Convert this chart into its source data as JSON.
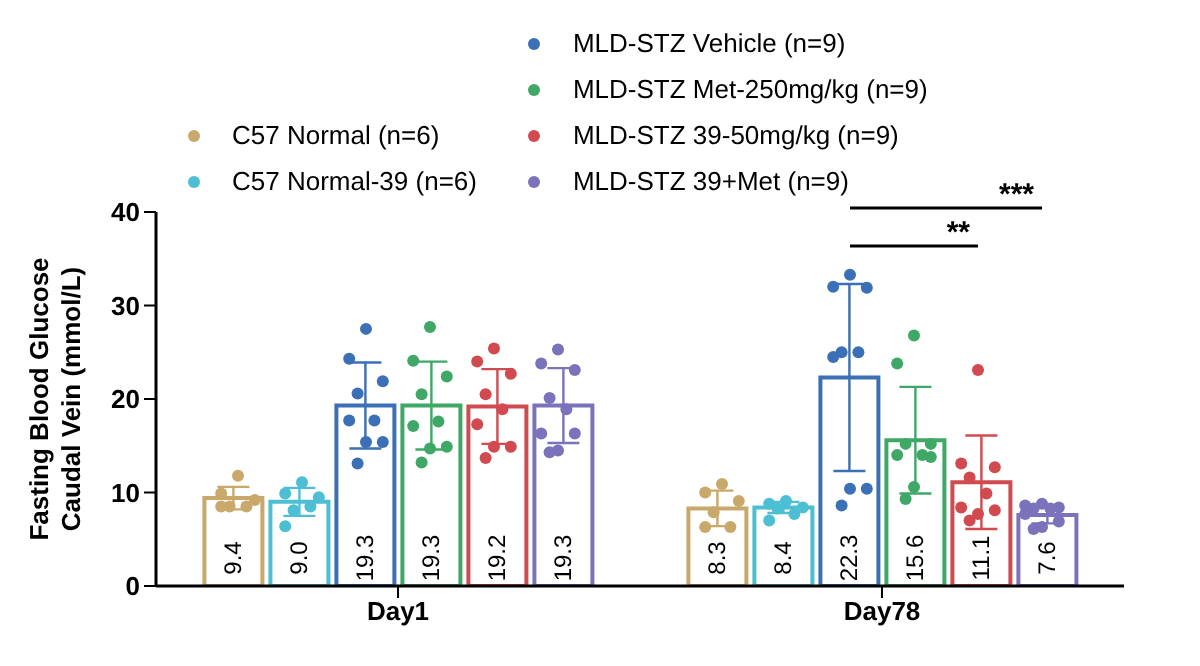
{
  "chart_data": {
    "type": "bar",
    "ylabel": "Fasting Blood Glucose\nCaudal Vein (mmol/L)",
    "categories": [
      "Day1",
      "Day78"
    ],
    "ylim": [
      0,
      40
    ],
    "yticks": [
      0,
      10,
      20,
      30,
      40
    ],
    "legend": "top",
    "marker": "circle",
    "annotations": [
      "**",
      "***"
    ],
    "series": [
      {
        "name": "C57 Normal (n=6)",
        "color": "#c9a96b",
        "values": [
          9.4,
          8.3
        ],
        "value_labels": [
          "9.4",
          "8.3"
        ],
        "errors": [
          1.2,
          1.9
        ]
      },
      {
        "name": "C57 Normal-39 (n=6)",
        "color": "#4cbfd5",
        "values": [
          9.0,
          8.4
        ],
        "value_labels": [
          "9.0",
          "8.4"
        ],
        "errors": [
          1.5,
          0.6
        ]
      },
      {
        "name": "MLD-STZ Vehicle (n=9)",
        "color": "#3b6fb6",
        "values": [
          19.3,
          22.3
        ],
        "value_labels": [
          "19.3",
          "22.3"
        ],
        "errors": [
          4.6,
          10.0
        ]
      },
      {
        "name": "MLD-STZ Met-250mg/kg (n=9)",
        "color": "#3fa867",
        "values": [
          19.3,
          15.6
        ],
        "value_labels": [
          "19.3",
          "15.6"
        ],
        "errors": [
          4.7,
          5.7
        ]
      },
      {
        "name": "MLD-STZ 39-50mg/kg (n=9)",
        "color": "#d04a50",
        "values": [
          19.2,
          11.1
        ],
        "value_labels": [
          "19.2",
          "11.1"
        ],
        "errors": [
          4.0,
          5.0
        ]
      },
      {
        "name": "MLD-STZ 39+Met (n=9)",
        "color": "#7a72bb",
        "values": [
          19.3,
          7.6
        ],
        "value_labels": [
          "19.3",
          "7.6"
        ],
        "errors": [
          4.0,
          0.9
        ]
      },
      {
        "type": "scatter",
        "color": "#c9a96b",
        "x": [
          "Day1",
          "Day1",
          "Day1",
          "Day1",
          "Day1",
          "Day1",
          "Day78",
          "Day78",
          "Day78",
          "Day78",
          "Day78",
          "Day78"
        ],
        "values": [
          11.8,
          9.9,
          9.2,
          8.5,
          8.5,
          8.5,
          10.9,
          10.0,
          9.1,
          7.9,
          6.3,
          6.3
        ]
      },
      {
        "type": "scatter",
        "color": "#4cbfd5",
        "x": [
          "Day1",
          "Day1",
          "Day1",
          "Day1",
          "Day1",
          "Day1",
          "Day78",
          "Day78",
          "Day78",
          "Day78",
          "Day78",
          "Day78"
        ],
        "values": [
          11.1,
          9.9,
          9.5,
          8.1,
          8.5,
          6.4,
          9.1,
          8.8,
          8.4,
          8.3,
          7.7,
          7.0
        ]
      },
      {
        "type": "scatter",
        "color": "#3b6fb6",
        "x": [
          "Day1",
          "Day1",
          "Day1",
          "Day1",
          "Day1",
          "Day1",
          "Day1",
          "Day1",
          "Day1",
          "Day78",
          "Day78",
          "Day78",
          "Day78",
          "Day78",
          "Day78",
          "Day78",
          "Day78",
          "Day78"
        ],
        "values": [
          27.5,
          24.3,
          21.9,
          20.6,
          17.7,
          17.7,
          15.4,
          15.4,
          13.1,
          33.3,
          32.0,
          31.9,
          25.0,
          25.0,
          24.5,
          10.4,
          10.4,
          8.6
        ]
      },
      {
        "type": "scatter",
        "color": "#3fa867",
        "x": [
          "Day1",
          "Day1",
          "Day1",
          "Day1",
          "Day1",
          "Day1",
          "Day1",
          "Day1",
          "Day1",
          "Day78",
          "Day78",
          "Day78",
          "Day78",
          "Day78",
          "Day78",
          "Day78",
          "Day78",
          "Day78"
        ],
        "values": [
          27.7,
          24.1,
          22.4,
          20.5,
          17.6,
          17.1,
          14.9,
          14.7,
          13.2,
          26.8,
          23.8,
          15.2,
          15.2,
          14.0,
          14.0,
          13.8,
          10.6,
          9.3
        ]
      },
      {
        "type": "scatter",
        "color": "#d04a50",
        "x": [
          "Day1",
          "Day1",
          "Day1",
          "Day1",
          "Day1",
          "Day1",
          "Day1",
          "Day1",
          "Day1",
          "Day78",
          "Day78",
          "Day78",
          "Day78",
          "Day78",
          "Day78",
          "Day78",
          "Day78",
          "Day78"
        ],
        "values": [
          25.4,
          24.0,
          22.7,
          20.5,
          18.9,
          17.3,
          14.9,
          14.9,
          13.7,
          23.1,
          13.1,
          12.7,
          11.6,
          9.9,
          8.4,
          8.1,
          7.7,
          7.0
        ]
      },
      {
        "type": "scatter",
        "color": "#7a72bb",
        "x": [
          "Day1",
          "Day1",
          "Day1",
          "Day1",
          "Day1",
          "Day1",
          "Day1",
          "Day1",
          "Day1",
          "Day78",
          "Day78",
          "Day78",
          "Day78",
          "Day78",
          "Day78",
          "Day78",
          "Day78",
          "Day78"
        ],
        "values": [
          25.3,
          23.8,
          23.1,
          20.1,
          18.9,
          16.3,
          16.3,
          14.5,
          14.3,
          8.8,
          8.6,
          8.4,
          8.3,
          8.3,
          7.7,
          6.9,
          6.3,
          6.1
        ]
      }
    ]
  }
}
